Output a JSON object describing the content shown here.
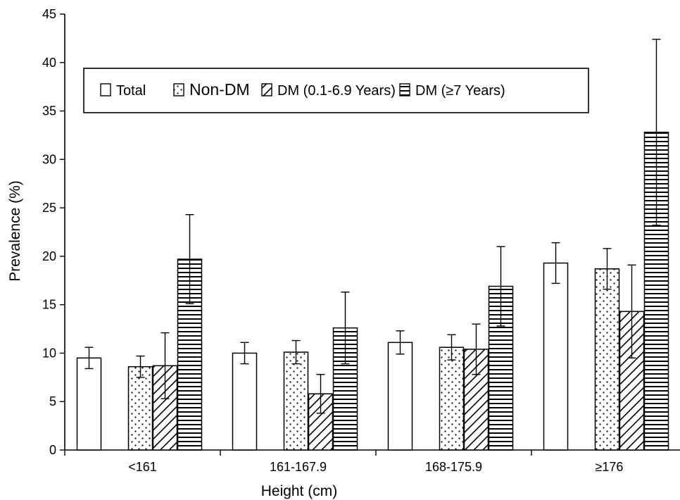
{
  "chart_data": {
    "type": "bar",
    "title": "",
    "xlabel": "Height (cm)",
    "ylabel": "Prevalence (%)",
    "ylim": [
      0,
      45
    ],
    "yticks": [
      0,
      5,
      10,
      15,
      20,
      25,
      30,
      35,
      40,
      45
    ],
    "categories": [
      "<161",
      "161-167.9",
      "168-175.9",
      "≥176"
    ],
    "grid": false,
    "legend_position": "top-left",
    "series": [
      {
        "name": "Total",
        "pattern": "empty",
        "values": [
          9.5,
          10.0,
          11.1,
          19.3
        ],
        "err_low": [
          8.4,
          8.9,
          9.9,
          17.2
        ],
        "err_high": [
          10.6,
          11.1,
          12.3,
          21.4
        ]
      },
      {
        "name": "Non-DM",
        "pattern": "dots",
        "values": [
          8.6,
          10.1,
          10.6,
          18.7
        ],
        "err_low": [
          7.5,
          8.9,
          9.3,
          16.6
        ],
        "err_high": [
          9.7,
          11.3,
          11.9,
          20.8
        ]
      },
      {
        "name": "DM (0.1-6.9 Years)",
        "pattern": "diagonal",
        "values": [
          8.7,
          5.8,
          10.4,
          14.3
        ],
        "err_low": [
          5.3,
          3.8,
          7.8,
          9.5
        ],
        "err_high": [
          12.1,
          7.8,
          13.0,
          19.1
        ]
      },
      {
        "name": "DM (≥7 Years)",
        "pattern": "horizontal",
        "values": [
          19.7,
          12.6,
          16.9,
          32.8
        ],
        "err_low": [
          15.1,
          8.9,
          12.8,
          23.2
        ],
        "err_high": [
          24.3,
          16.3,
          21.0,
          42.4
        ]
      }
    ],
    "colors": {
      "axis": "#000000",
      "bar_fill": "#ffffff",
      "bar_stroke": "#000000"
    }
  }
}
